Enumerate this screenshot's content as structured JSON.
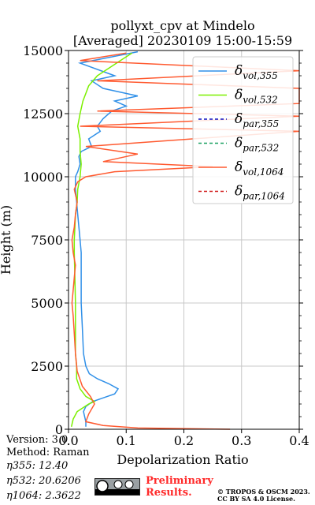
{
  "chart_data": {
    "type": "line",
    "title": "pollyxt_cpv at Mindelo",
    "subtitle": "[Averaged] 20230109 15:00-15:59",
    "xlabel": "Depolarization Ratio",
    "ylabel": "Height (m)",
    "xlim": [
      0,
      0.4
    ],
    "ylim": [
      0,
      15000
    ],
    "xticks": [
      "0.0",
      "0.1",
      "0.2",
      "0.3",
      "0.4"
    ],
    "yticks": [
      "0",
      "2500",
      "5000",
      "7500",
      "10000",
      "12500",
      "15000"
    ],
    "grid": true,
    "legend_position": "top-right",
    "series": [
      {
        "name": "δvol,355",
        "sub": "vol,355",
        "color": "#3090e8",
        "dash": "none",
        "x": [
          0.03,
          0.03,
          0.028,
          0.026,
          0.03,
          0.042,
          0.08,
          0.086,
          0.07,
          0.05,
          0.036,
          0.03,
          0.026,
          0.024,
          0.022,
          0.022,
          0.022,
          0.02,
          0.018,
          0.016,
          0.014,
          0.012,
          0.012,
          0.016,
          0.02,
          0.018,
          0.022,
          0.04,
          0.035,
          0.055,
          0.05,
          0.06,
          0.075,
          0.1,
          0.08,
          0.12,
          0.06,
          0.04,
          0.08,
          0.02,
          0.12
        ],
        "y": [
          100,
          300,
          500,
          700,
          900,
          1100,
          1400,
          1600,
          1800,
          2000,
          2200,
          2500,
          3000,
          4000,
          5000,
          6000,
          7000,
          7500,
          8000,
          8500,
          9000,
          9500,
          10000,
          10200,
          10500,
          10800,
          11000,
          11200,
          11500,
          11800,
          12000,
          12300,
          12600,
          12800,
          13000,
          13200,
          13500,
          13800,
          14000,
          14500,
          14950
        ]
      },
      {
        "name": "δvol,532",
        "sub": "vol,532",
        "color": "#7cf000",
        "dash": "none",
        "x": [
          0.005,
          0.008,
          0.015,
          0.035,
          0.045,
          0.03,
          0.02,
          0.014,
          0.014,
          0.012,
          0.012,
          0.012,
          0.011,
          0.01,
          0.01,
          0.011,
          0.012,
          0.015,
          0.016,
          0.02,
          0.022,
          0.02,
          0.02,
          0.016,
          0.02,
          0.025,
          0.03,
          0.035,
          0.05,
          0.07,
          0.09,
          0.11
        ],
        "y": [
          100,
          400,
          700,
          1000,
          1100,
          1300,
          1600,
          2000,
          2500,
          3000,
          4000,
          5000,
          6000,
          7000,
          7500,
          8000,
          8500,
          9000,
          9500,
          10000,
          10500,
          11000,
          11500,
          12000,
          12500,
          13000,
          13300,
          13600,
          14000,
          14300,
          14600,
          14900
        ]
      },
      {
        "name": "δpar,355",
        "sub": "par,355",
        "color": "#1010c0",
        "dash": "4,3",
        "x": [],
        "y": []
      },
      {
        "name": "δpar,532",
        "sub": "par,532",
        "color": "#18a060",
        "dash": "4,3",
        "x": [],
        "y": []
      },
      {
        "name": "δvol,1064",
        "sub": "vol,1064",
        "color": "#ff5a30",
        "dash": "none",
        "x": [
          0.28,
          0.12,
          0.06,
          0.03,
          0.035,
          0.045,
          0.038,
          0.024,
          0.015,
          0.012,
          0.01,
          0.008,
          0.006,
          0.008,
          0.01,
          0.012,
          0.008,
          0.006,
          0.01,
          0.012,
          0.015,
          0.01,
          0.016,
          0.03,
          0.08,
          0.25,
          0.06,
          0.12,
          0.03,
          0.4,
          0.02,
          0.4,
          0.05,
          0.4,
          0.4,
          0.05,
          0.4,
          0.02,
          0.1
        ],
        "y": [
          0,
          50,
          150,
          300,
          600,
          1000,
          1300,
          1700,
          2300,
          3000,
          3800,
          4500,
          5000,
          5500,
          6000,
          6500,
          7000,
          7500,
          8000,
          8500,
          9000,
          9500,
          9800,
          10000,
          10200,
          10400,
          10600,
          10900,
          11200,
          11800,
          12000,
          12400,
          12600,
          12900,
          13500,
          13800,
          14200,
          14600,
          14900
        ]
      },
      {
        "name": "δpar,1064",
        "sub": "par,1064",
        "color": "#d01818",
        "dash": "4,3",
        "x": [],
        "y": []
      }
    ]
  },
  "footer": {
    "version": "Version: 3.0",
    "method": "Method: Raman",
    "eta355": "η355:  12.40",
    "eta532": "η532: 20.6206",
    "eta1064": "η1064: 2.3622",
    "preliminary_1": "Preliminary",
    "preliminary_2": "Results.",
    "copyright_1": "© TROPOS & OSCM 2023.",
    "copyright_2": "CC BY SA 4.0 License."
  }
}
